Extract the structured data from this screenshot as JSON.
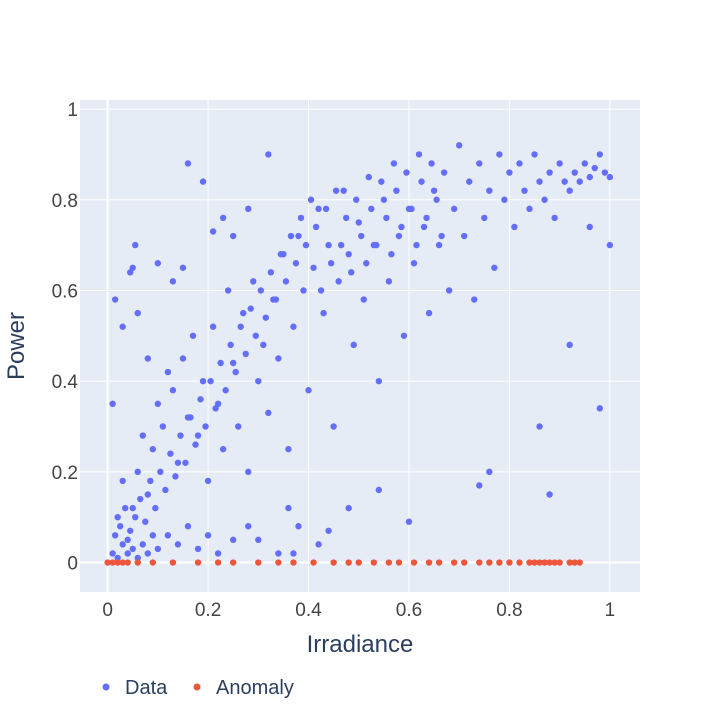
{
  "chart_data": {
    "type": "scatter",
    "title": "",
    "xlabel": "Irradiance",
    "ylabel": "Power",
    "xlim": [
      -0.055,
      1.06
    ],
    "ylim": [
      -0.065,
      1.02
    ],
    "grid": true,
    "legend_position": "bottom-left",
    "x_ticks": [
      0,
      0.2,
      0.4,
      0.6,
      0.8,
      1
    ],
    "x_tick_labels": [
      "0",
      "0.2",
      "0.4",
      "0.6",
      "0.8",
      "1"
    ],
    "y_ticks": [
      0,
      0.2,
      0.4,
      0.6,
      0.8,
      1
    ],
    "y_tick_labels": [
      "0",
      "0.2",
      "0.4",
      "0.6",
      "0.8",
      "1"
    ],
    "colors": {
      "plot_background": "#e5ecf6",
      "grid": "#ffffff",
      "data": "#636efa",
      "anomaly": "#ef553b"
    },
    "series": [
      {
        "name": "Data",
        "color": "#636efa",
        "points": [
          [
            0.01,
            0.35
          ],
          [
            0.015,
            0.58
          ],
          [
            0.03,
            0.52
          ],
          [
            0.045,
            0.64
          ],
          [
            0.055,
            0.7
          ],
          [
            0.05,
            0.65
          ],
          [
            0.16,
            0.88
          ],
          [
            0.19,
            0.84
          ],
          [
            0.32,
            0.9
          ],
          [
            0.06,
            0.55
          ],
          [
            0.08,
            0.45
          ],
          [
            0.1,
            0.66
          ],
          [
            0.13,
            0.62
          ],
          [
            0.15,
            0.65
          ],
          [
            0.21,
            0.73
          ],
          [
            0.23,
            0.76
          ],
          [
            0.25,
            0.72
          ],
          [
            0.28,
            0.78
          ],
          [
            0.03,
            0.18
          ],
          [
            0.02,
            0.1
          ],
          [
            0.04,
            0.05
          ],
          [
            0.05,
            0.12
          ],
          [
            0.06,
            0.2
          ],
          [
            0.07,
            0.28
          ],
          [
            0.08,
            0.15
          ],
          [
            0.09,
            0.25
          ],
          [
            0.1,
            0.35
          ],
          [
            0.11,
            0.3
          ],
          [
            0.12,
            0.42
          ],
          [
            0.13,
            0.38
          ],
          [
            0.14,
            0.22
          ],
          [
            0.15,
            0.45
          ],
          [
            0.16,
            0.32
          ],
          [
            0.17,
            0.5
          ],
          [
            0.18,
            0.28
          ],
          [
            0.19,
            0.4
          ],
          [
            0.2,
            0.18
          ],
          [
            0.21,
            0.52
          ],
          [
            0.22,
            0.35
          ],
          [
            0.23,
            0.25
          ],
          [
            0.24,
            0.6
          ],
          [
            0.25,
            0.44
          ],
          [
            0.26,
            0.3
          ],
          [
            0.27,
            0.55
          ],
          [
            0.28,
            0.2
          ],
          [
            0.29,
            0.62
          ],
          [
            0.3,
            0.4
          ],
          [
            0.31,
            0.48
          ],
          [
            0.32,
            0.33
          ],
          [
            0.33,
            0.58
          ],
          [
            0.34,
            0.45
          ],
          [
            0.35,
            0.68
          ],
          [
            0.36,
            0.25
          ],
          [
            0.37,
            0.52
          ],
          [
            0.38,
            0.72
          ],
          [
            0.39,
            0.6
          ],
          [
            0.4,
            0.38
          ],
          [
            0.41,
            0.65
          ],
          [
            0.42,
            0.78
          ],
          [
            0.43,
            0.55
          ],
          [
            0.44,
            0.7
          ],
          [
            0.45,
            0.3
          ],
          [
            0.46,
            0.62
          ],
          [
            0.47,
            0.82
          ],
          [
            0.48,
            0.68
          ],
          [
            0.49,
            0.48
          ],
          [
            0.5,
            0.75
          ],
          [
            0.51,
            0.58
          ],
          [
            0.52,
            0.85
          ],
          [
            0.53,
            0.7
          ],
          [
            0.54,
            0.4
          ],
          [
            0.55,
            0.8
          ],
          [
            0.56,
            0.62
          ],
          [
            0.57,
            0.88
          ],
          [
            0.58,
            0.72
          ],
          [
            0.59,
            0.5
          ],
          [
            0.6,
            0.78
          ],
          [
            0.61,
            0.66
          ],
          [
            0.62,
            0.9
          ],
          [
            0.63,
            0.74
          ],
          [
            0.64,
            0.55
          ],
          [
            0.65,
            0.82
          ],
          [
            0.66,
            0.7
          ],
          [
            0.67,
            0.86
          ],
          [
            0.68,
            0.6
          ],
          [
            0.69,
            0.78
          ],
          [
            0.7,
            0.92
          ],
          [
            0.71,
            0.72
          ],
          [
            0.72,
            0.84
          ],
          [
            0.73,
            0.58
          ],
          [
            0.74,
            0.88
          ],
          [
            0.75,
            0.76
          ],
          [
            0.76,
            0.82
          ],
          [
            0.77,
            0.65
          ],
          [
            0.78,
            0.9
          ],
          [
            0.79,
            0.8
          ],
          [
            0.8,
            0.86
          ],
          [
            0.81,
            0.74
          ],
          [
            0.82,
            0.88
          ],
          [
            0.83,
            0.82
          ],
          [
            0.84,
            0.78
          ],
          [
            0.85,
            0.9
          ],
          [
            0.86,
            0.84
          ],
          [
            0.87,
            0.8
          ],
          [
            0.88,
            0.86
          ],
          [
            0.89,
            0.76
          ],
          [
            0.9,
            0.88
          ],
          [
            0.91,
            0.84
          ],
          [
            0.92,
            0.82
          ],
          [
            0.93,
            0.86
          ],
          [
            0.94,
            0.84
          ],
          [
            0.95,
            0.88
          ],
          [
            0.96,
            0.85
          ],
          [
            0.97,
            0.87
          ],
          [
            0.98,
            0.9
          ],
          [
            0.99,
            0.86
          ],
          [
            1.0,
            0.85
          ],
          [
            0.98,
            0.34
          ],
          [
            1.0,
            0.7
          ],
          [
            0.96,
            0.74
          ],
          [
            0.86,
            0.3
          ],
          [
            0.88,
            0.15
          ],
          [
            0.92,
            0.48
          ],
          [
            0.74,
            0.17
          ],
          [
            0.76,
            0.2
          ],
          [
            0.6,
            0.09
          ],
          [
            0.54,
            0.16
          ],
          [
            0.48,
            0.12
          ],
          [
            0.44,
            0.07
          ],
          [
            0.42,
            0.04
          ],
          [
            0.38,
            0.08
          ],
          [
            0.37,
            0.02
          ],
          [
            0.36,
            0.12
          ],
          [
            0.34,
            0.02
          ],
          [
            0.3,
            0.05
          ],
          [
            0.28,
            0.08
          ],
          [
            0.25,
            0.05
          ],
          [
            0.22,
            0.02
          ],
          [
            0.2,
            0.06
          ],
          [
            0.18,
            0.03
          ],
          [
            0.16,
            0.08
          ],
          [
            0.14,
            0.04
          ],
          [
            0.12,
            0.06
          ],
          [
            0.1,
            0.03
          ],
          [
            0.09,
            0.06
          ],
          [
            0.08,
            0.02
          ],
          [
            0.07,
            0.04
          ],
          [
            0.06,
            0.01
          ],
          [
            0.05,
            0.03
          ],
          [
            0.04,
            0.02
          ],
          [
            0.03,
            0.04
          ],
          [
            0.02,
            0.01
          ],
          [
            0.01,
            0.02
          ],
          [
            0.015,
            0.06
          ],
          [
            0.025,
            0.08
          ],
          [
            0.035,
            0.12
          ],
          [
            0.045,
            0.07
          ],
          [
            0.055,
            0.1
          ],
          [
            0.065,
            0.14
          ],
          [
            0.075,
            0.09
          ],
          [
            0.085,
            0.18
          ],
          [
            0.095,
            0.12
          ],
          [
            0.105,
            0.2
          ],
          [
            0.115,
            0.16
          ],
          [
            0.125,
            0.24
          ],
          [
            0.135,
            0.19
          ],
          [
            0.145,
            0.28
          ],
          [
            0.155,
            0.22
          ],
          [
            0.165,
            0.32
          ],
          [
            0.175,
            0.26
          ],
          [
            0.185,
            0.36
          ],
          [
            0.195,
            0.3
          ],
          [
            0.205,
            0.4
          ],
          [
            0.215,
            0.34
          ],
          [
            0.225,
            0.44
          ],
          [
            0.235,
            0.38
          ],
          [
            0.245,
            0.48
          ],
          [
            0.255,
            0.42
          ],
          [
            0.265,
            0.52
          ],
          [
            0.275,
            0.46
          ],
          [
            0.285,
            0.56
          ],
          [
            0.295,
            0.5
          ],
          [
            0.305,
            0.6
          ],
          [
            0.315,
            0.54
          ],
          [
            0.325,
            0.64
          ],
          [
            0.335,
            0.58
          ],
          [
            0.345,
            0.68
          ],
          [
            0.355,
            0.62
          ],
          [
            0.365,
            0.72
          ],
          [
            0.375,
            0.66
          ],
          [
            0.385,
            0.76
          ],
          [
            0.395,
            0.7
          ],
          [
            0.405,
            0.8
          ],
          [
            0.415,
            0.74
          ],
          [
            0.425,
            0.6
          ],
          [
            0.435,
            0.78
          ],
          [
            0.445,
            0.66
          ],
          [
            0.455,
            0.82
          ],
          [
            0.465,
            0.7
          ],
          [
            0.475,
            0.76
          ],
          [
            0.485,
            0.64
          ],
          [
            0.495,
            0.8
          ],
          [
            0.505,
            0.72
          ],
          [
            0.515,
            0.66
          ],
          [
            0.525,
            0.78
          ],
          [
            0.535,
            0.7
          ],
          [
            0.545,
            0.84
          ],
          [
            0.555,
            0.76
          ],
          [
            0.565,
            0.68
          ],
          [
            0.575,
            0.82
          ],
          [
            0.585,
            0.74
          ],
          [
            0.595,
            0.86
          ],
          [
            0.605,
            0.78
          ],
          [
            0.615,
            0.7
          ],
          [
            0.625,
            0.84
          ],
          [
            0.635,
            0.76
          ],
          [
            0.645,
            0.88
          ],
          [
            0.655,
            0.8
          ],
          [
            0.665,
            0.72
          ]
        ]
      },
      {
        "name": "Anomaly",
        "color": "#ef553b",
        "points": [
          [
            0.0,
            0.0
          ],
          [
            0.01,
            0.0
          ],
          [
            0.02,
            0.0
          ],
          [
            0.03,
            0.0
          ],
          [
            0.04,
            0.0
          ],
          [
            0.06,
            0.0
          ],
          [
            0.09,
            0.0
          ],
          [
            0.13,
            0.0
          ],
          [
            0.18,
            0.0
          ],
          [
            0.22,
            0.0
          ],
          [
            0.25,
            0.0
          ],
          [
            0.3,
            0.0
          ],
          [
            0.34,
            0.0
          ],
          [
            0.37,
            0.0
          ],
          [
            0.41,
            0.0
          ],
          [
            0.45,
            0.0
          ],
          [
            0.48,
            0.0
          ],
          [
            0.5,
            0.0
          ],
          [
            0.53,
            0.0
          ],
          [
            0.56,
            0.0
          ],
          [
            0.58,
            0.0
          ],
          [
            0.61,
            0.0
          ],
          [
            0.64,
            0.0
          ],
          [
            0.66,
            0.0
          ],
          [
            0.69,
            0.0
          ],
          [
            0.71,
            0.0
          ],
          [
            0.74,
            0.0
          ],
          [
            0.76,
            0.0
          ],
          [
            0.78,
            0.0
          ],
          [
            0.8,
            0.0
          ],
          [
            0.82,
            0.0
          ],
          [
            0.84,
            0.0
          ],
          [
            0.85,
            0.0
          ],
          [
            0.86,
            0.0
          ],
          [
            0.87,
            0.0
          ],
          [
            0.88,
            0.0
          ],
          [
            0.89,
            0.0
          ],
          [
            0.9,
            0.0
          ],
          [
            0.92,
            0.0
          ],
          [
            0.93,
            0.0
          ],
          [
            0.94,
            0.0
          ]
        ]
      }
    ]
  }
}
